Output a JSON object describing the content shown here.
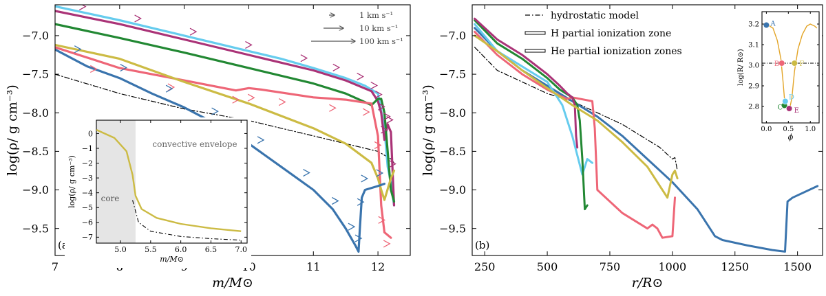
{
  "colors": {
    "A": "#3a74ad",
    "B": "#ee6677",
    "C": "#228833",
    "D": "#66ccee",
    "E": "#aa3377",
    "F": "#ccbb44",
    "hydro": "#000000",
    "inset_phase": "#e3a528",
    "core_shade": "#e5e5e5"
  },
  "chart_data": [
    {
      "id": "a",
      "type": "line",
      "panel_label": "(a)",
      "xlabel": "m/M⊙",
      "ylabel": "log(ρ/ g cm⁻³)",
      "xlim": [
        7.0,
        12.5
      ],
      "ylim": [
        -9.85,
        -6.6
      ],
      "xticks": [
        7,
        8,
        9,
        10,
        11,
        12
      ],
      "yticks": [
        -7.0,
        -7.5,
        -8.0,
        -8.5,
        -9.0,
        -9.5
      ],
      "yticklabels": [
        "−7.0",
        "−7.5",
        "−8.0",
        "−8.5",
        "−9.0",
        "−9.5"
      ],
      "velocity_legend": [
        "1 km s⁻¹",
        "10 km s⁻¹",
        "100 km s⁻¹"
      ],
      "series": [
        {
          "key": "hydro",
          "style": "dashdot",
          "x": [
            7.0,
            8.0,
            9.0,
            10.0,
            11.0,
            11.5,
            12.0,
            12.1,
            12.2,
            12.25
          ],
          "y": [
            -7.5,
            -7.75,
            -7.95,
            -8.1,
            -8.3,
            -8.4,
            -8.5,
            -8.55,
            -8.6,
            -8.65
          ]
        },
        {
          "key": "D",
          "x": [
            7.0,
            8.0,
            9.0,
            10.0,
            10.5,
            11.0,
            11.5,
            11.8,
            12.0,
            12.1,
            12.15,
            12.2,
            12.25
          ],
          "y": [
            -6.62,
            -6.8,
            -7.0,
            -7.2,
            -7.3,
            -7.42,
            -7.55,
            -7.65,
            -7.75,
            -8.2,
            -8.7,
            -8.9,
            -9.2
          ]
        },
        {
          "key": "E",
          "x": [
            7.0,
            8.0,
            9.0,
            10.0,
            11.0,
            11.5,
            11.9,
            12.0,
            12.05,
            12.1,
            12.15,
            12.2,
            12.25
          ],
          "y": [
            -6.68,
            -6.85,
            -7.05,
            -7.25,
            -7.45,
            -7.58,
            -7.72,
            -7.85,
            -8.0,
            -8.35,
            -8.15,
            -8.25,
            -9.2
          ]
        },
        {
          "key": "C",
          "x": [
            7.0,
            8.0,
            9.0,
            10.0,
            11.0,
            11.5,
            11.9,
            12.0,
            12.05,
            12.1,
            12.15,
            12.2,
            12.25
          ],
          "y": [
            -6.85,
            -7.03,
            -7.22,
            -7.42,
            -7.62,
            -7.75,
            -7.9,
            -7.82,
            -7.82,
            -8.0,
            -8.5,
            -9.0,
            -9.15
          ]
        },
        {
          "key": "B",
          "x": [
            7.0,
            8.0,
            9.0,
            9.8,
            10.0,
            10.2,
            11.0,
            11.5,
            11.9,
            12.0,
            12.05,
            12.1,
            12.2
          ],
          "y": [
            -7.15,
            -7.42,
            -7.58,
            -7.71,
            -7.68,
            -7.7,
            -7.8,
            -7.83,
            -7.88,
            -8.3,
            -9.2,
            -9.55,
            -9.62
          ]
        },
        {
          "key": "F",
          "x": [
            7.0,
            8.0,
            9.0,
            10.0,
            11.0,
            11.5,
            11.9,
            12.0,
            12.05,
            12.1,
            12.2,
            12.25
          ],
          "y": [
            -7.12,
            -7.3,
            -7.6,
            -7.88,
            -8.2,
            -8.4,
            -8.65,
            -8.85,
            -9.0,
            -9.13,
            -8.85,
            -8.75
          ]
        },
        {
          "key": "A",
          "x": [
            7.0,
            7.5,
            8.0,
            8.5,
            9.0,
            9.5,
            10.0,
            10.5,
            11.0,
            11.3,
            11.5,
            11.65,
            11.7,
            11.72,
            11.75,
            11.8,
            12.0,
            12.1
          ],
          "y": [
            -7.18,
            -7.4,
            -7.55,
            -7.75,
            -7.93,
            -8.15,
            -8.4,
            -8.7,
            -9.0,
            -9.25,
            -9.5,
            -9.72,
            -9.8,
            -9.5,
            -9.1,
            -9.0,
            -8.95,
            -8.92
          ]
        }
      ]
    },
    {
      "id": "a-inset",
      "type": "line",
      "xlabel": "m/M⊙",
      "ylabel": "log(ρ/ g cm⁻³)",
      "xlim": [
        4.6,
        7.1
      ],
      "ylim": [
        -7.4,
        0.9
      ],
      "xticks": [
        5.0,
        5.5,
        6.0,
        6.5,
        7.0
      ],
      "xticklabels": [
        "5.0",
        "5.5",
        "6.0",
        "6.5",
        "7.0"
      ],
      "yticks": [
        0,
        -1,
        -2,
        -3,
        -4,
        -5,
        -6,
        -7
      ],
      "yticklabels": [
        "0",
        "−1",
        "−2",
        "−3",
        "−4",
        "−5",
        "−6",
        "−7"
      ],
      "core_label": "core",
      "envelope_label": "convective envelope",
      "core_range": [
        4.6,
        5.25
      ],
      "series": [
        {
          "key": "hydro",
          "style": "dashdot",
          "x": [
            5.2,
            5.3,
            5.5,
            6.0,
            6.5,
            7.0
          ],
          "y": [
            -4.5,
            -6.0,
            -6.6,
            -6.95,
            -7.1,
            -7.2
          ]
        },
        {
          "key": "F",
          "x": [
            4.6,
            4.9,
            5.1,
            5.2,
            5.25,
            5.35,
            5.6,
            6.0,
            6.5,
            7.0
          ],
          "y": [
            0.25,
            -0.3,
            -1.2,
            -2.8,
            -4.2,
            -5.1,
            -5.7,
            -6.1,
            -6.4,
            -6.6
          ]
        }
      ]
    },
    {
      "id": "b",
      "type": "line",
      "panel_label": "(b)",
      "xlabel": "r/R⊙",
      "ylabel": "log(ρ/ g cm⁻³)",
      "xlim": [
        200,
        1600
      ],
      "ylim": [
        -9.85,
        -6.6
      ],
      "xticks": [
        250,
        500,
        750,
        1000,
        1250,
        1500
      ],
      "yticks": [
        -7.0,
        -7.5,
        -8.0,
        -8.5,
        -9.0,
        -9.5
      ],
      "yticklabels": [
        "−7.0",
        "−7.5",
        "−8.0",
        "−8.5",
        "−9.0",
        "−9.5"
      ],
      "legend": {
        "hydro": "hydrostatic model",
        "H": "H partial ionization zone",
        "He": "He partial ionization zones"
      },
      "series": [
        {
          "key": "hydro",
          "style": "dashdot",
          "x": [
            210,
            300,
            400,
            500,
            600,
            700,
            800,
            900,
            950,
            1000,
            1010,
            1020
          ],
          "y": [
            -7.15,
            -7.45,
            -7.6,
            -7.75,
            -7.85,
            -8.0,
            -8.15,
            -8.35,
            -8.45,
            -8.6,
            -8.58,
            -8.75
          ]
        },
        {
          "key": "A",
          "x": [
            210,
            300,
            400,
            500,
            600,
            700,
            800,
            900,
            1000,
            1100,
            1170,
            1200,
            1300,
            1400,
            1450,
            1460,
            1480,
            1580
          ],
          "y": [
            -6.9,
            -7.2,
            -7.45,
            -7.65,
            -7.85,
            -8.05,
            -8.3,
            -8.6,
            -8.9,
            -9.25,
            -9.6,
            -9.65,
            -9.72,
            -9.78,
            -9.8,
            -9.15,
            -9.1,
            -8.95
          ]
        },
        {
          "key": "B",
          "x": [
            210,
            300,
            400,
            500,
            550,
            580,
            600,
            680,
            690,
            700,
            800,
            900,
            920,
            940,
            960,
            1000,
            1010
          ],
          "y": [
            -6.95,
            -7.25,
            -7.5,
            -7.7,
            -7.78,
            -7.82,
            -7.8,
            -7.85,
            -8.2,
            -9.0,
            -9.3,
            -9.5,
            -9.45,
            -9.5,
            -9.62,
            -9.6,
            -9.1
          ]
        },
        {
          "key": "D",
          "x": [
            210,
            300,
            400,
            500,
            560,
            600,
            640,
            660,
            680
          ],
          "y": [
            -6.85,
            -7.2,
            -7.4,
            -7.6,
            -7.9,
            -8.3,
            -8.8,
            -8.6,
            -8.65
          ]
        },
        {
          "key": "C",
          "x": [
            210,
            300,
            400,
            500,
            550,
            600,
            620,
            630,
            640,
            650,
            660
          ],
          "y": [
            -6.8,
            -7.1,
            -7.3,
            -7.55,
            -7.7,
            -7.8,
            -7.9,
            -8.1,
            -8.6,
            -9.25,
            -9.2
          ]
        },
        {
          "key": "E",
          "x": [
            210,
            300,
            400,
            500,
            550,
            580,
            600,
            610,
            615,
            620
          ],
          "y": [
            -6.78,
            -7.05,
            -7.25,
            -7.5,
            -7.65,
            -7.75,
            -7.8,
            -7.9,
            -8.3,
            -8.45
          ]
        },
        {
          "key": "F",
          "x": [
            210,
            300,
            400,
            500,
            600,
            700,
            800,
            900,
            950,
            980,
            1000,
            1010,
            1020
          ],
          "y": [
            -7.0,
            -7.2,
            -7.45,
            -7.68,
            -7.9,
            -8.1,
            -8.38,
            -8.7,
            -8.95,
            -9.1,
            -8.8,
            -8.75,
            -8.85
          ]
        }
      ]
    },
    {
      "id": "b-inset",
      "type": "line",
      "xlabel": "ϕ",
      "ylabel": "log(R/ R⊙)",
      "xlim": [
        -0.1,
        1.2
      ],
      "ylim": [
        2.72,
        3.26
      ],
      "xticks": [
        0.0,
        0.5,
        1.0
      ],
      "xticklabels": [
        "0.0",
        "0.5",
        "1.0"
      ],
      "yticks": [
        2.8,
        2.9,
        3.0,
        3.1,
        3.2
      ],
      "yticklabels": [
        "2.8",
        "2.9",
        "3.0",
        "3.1",
        "3.2"
      ],
      "reference_y": 3.01,
      "curve": {
        "x": [
          0.0,
          0.15,
          0.25,
          0.33,
          0.38,
          0.41,
          0.44,
          0.48,
          0.53,
          0.58,
          0.64,
          0.72,
          0.82,
          0.92,
          1.0,
          1.1,
          1.15
        ],
        "y": [
          3.2,
          3.18,
          3.12,
          3.03,
          2.92,
          2.84,
          2.8,
          2.79,
          2.79,
          2.84,
          2.97,
          3.08,
          3.15,
          3.19,
          3.2,
          3.19,
          3.18
        ]
      },
      "points": [
        {
          "label": "A",
          "key": "A",
          "x": 0.0,
          "y": 3.195
        },
        {
          "label": "B",
          "key": "B",
          "x": 0.35,
          "y": 3.01
        },
        {
          "label": "C",
          "key": "C",
          "x": 0.41,
          "y": 2.805
        },
        {
          "label": "D",
          "key": "D",
          "x": 0.43,
          "y": 2.825
        },
        {
          "label": "E",
          "key": "E",
          "x": 0.52,
          "y": 2.79
        },
        {
          "label": "F",
          "key": "F",
          "x": 0.64,
          "y": 3.01
        }
      ]
    }
  ]
}
